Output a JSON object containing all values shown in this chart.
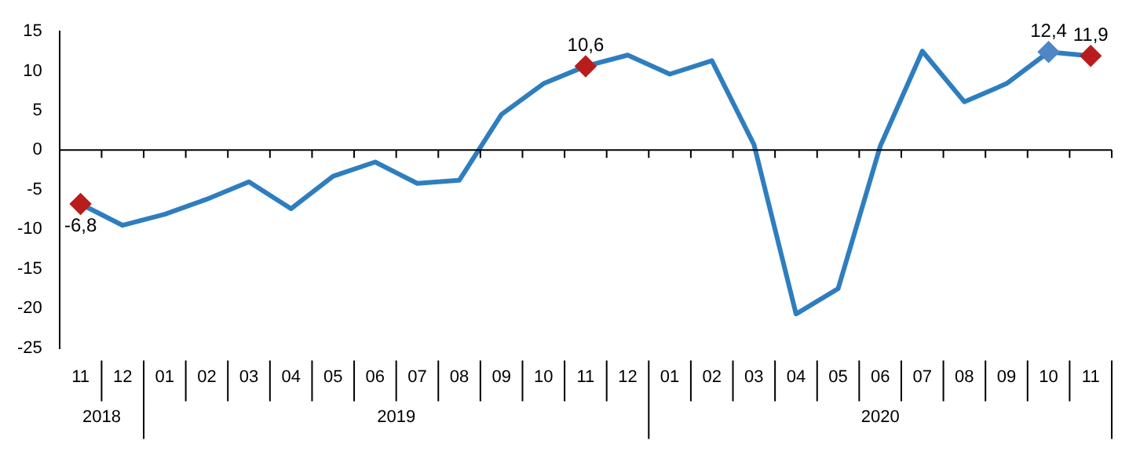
{
  "chart_data": {
    "type": "line",
    "categories": [
      "11",
      "12",
      "01",
      "02",
      "03",
      "04",
      "05",
      "06",
      "07",
      "08",
      "09",
      "10",
      "11",
      "12",
      "01",
      "02",
      "03",
      "04",
      "05",
      "06",
      "07",
      "08",
      "09",
      "10",
      "11"
    ],
    "series": [
      {
        "color": "#2e7ebf",
        "values": [
          -6.8,
          -9.5,
          -8.1,
          -6.2,
          -4.0,
          -7.4,
          -3.3,
          -1.5,
          -4.2,
          -3.8,
          4.5,
          8.4,
          10.6,
          12.0,
          9.6,
          11.3,
          0.7,
          -20.7,
          -17.5,
          0.5,
          12.5,
          6.1,
          8.4,
          12.4,
          11.9
        ],
        "value_labels": [
          "-6,8",
          null,
          null,
          null,
          null,
          null,
          null,
          null,
          null,
          null,
          null,
          null,
          "10,6",
          null,
          null,
          null,
          null,
          null,
          null,
          null,
          null,
          null,
          null,
          "12,4",
          "11,9"
        ],
        "colors": [
          "#b81c1c",
          null,
          null,
          null,
          null,
          null,
          null,
          null,
          null,
          null,
          null,
          null,
          "#b81c1c",
          null,
          null,
          null,
          null,
          null,
          null,
          null,
          null,
          null,
          null,
          "#4f86c6",
          "#b81c1c"
        ]
      }
    ],
    "annotations": [
      "2018",
      "2019",
      "2020"
    ],
    "ylim": [
      -25,
      15
    ],
    "yticks": [
      -25,
      -20,
      -15,
      -10,
      -5,
      0,
      5,
      10,
      15
    ],
    "ref_lines": [
      {
        "axis": "y",
        "value": 0,
        "color": "#000000"
      }
    ],
    "grid": false,
    "legend": false
  }
}
